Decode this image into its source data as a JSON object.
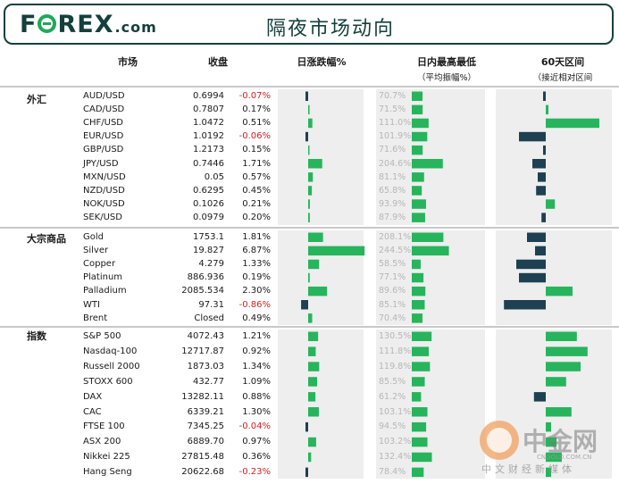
{
  "header": {
    "logo": {
      "pre": "F",
      "post": "REX",
      "domain": ".com"
    },
    "title": "隔夜市场动向"
  },
  "columns": {
    "market": "市场",
    "close": "收盘",
    "daily": "日涨跌幅%",
    "range": "日内最高最低",
    "range_sub": "（平均振幅%）",
    "sixty": "60天区间",
    "sixty_sub": "（接近相对区间"
  },
  "watermark": {
    "name": "中金网",
    "url": "CNGOLD.COM.CN",
    "slogan": "中文财经新媒体"
  },
  "colors": {
    "positive": "#27b45c",
    "negative": "#1d4052",
    "negative_text": "#d42020",
    "panel": "#eeeeee"
  },
  "chart_data": {
    "type": "bar",
    "daily_change_range": [
      -1,
      8
    ],
    "sixty_day_range": [
      -1,
      1
    ],
    "sections": [
      {
        "name": "外汇",
        "rows": [
          {
            "name": "AUD/USD",
            "close": "0.6994",
            "change": "-0.07%",
            "change_value": -0.07,
            "avg_range": "70.7%",
            "avg_value": 70.7,
            "sixty_day": -0.03
          },
          {
            "name": "CAD/USD",
            "close": "0.7807",
            "change": "0.17%",
            "change_value": 0.17,
            "avg_range": "71.5%",
            "avg_value": 71.5,
            "sixty_day": 0.03
          },
          {
            "name": "CHF/USD",
            "close": "1.0472",
            "change": "0.51%",
            "change_value": 0.51,
            "avg_range": "111.0%",
            "avg_value": 111.0,
            "sixty_day": 1.0
          },
          {
            "name": "EUR/USD",
            "close": "1.0192",
            "change": "-0.06%",
            "change_value": -0.06,
            "avg_range": "101.9%",
            "avg_value": 101.9,
            "sixty_day": -0.5
          },
          {
            "name": "GBP/USD",
            "close": "1.2173",
            "change": "0.15%",
            "change_value": 0.15,
            "avg_range": "71.6%",
            "avg_value": 71.6,
            "sixty_day": -0.04
          },
          {
            "name": "JPY/USD",
            "close": "0.7446",
            "change": "1.71%",
            "change_value": 1.71,
            "avg_range": "204.6%",
            "avg_value": 204.6,
            "sixty_day": -0.25
          },
          {
            "name": "MXN/USD",
            "close": "0.05",
            "change": "0.57%",
            "change_value": 0.57,
            "avg_range": "81.1%",
            "avg_value": 81.1,
            "sixty_day": -0.15
          },
          {
            "name": "NZD/USD",
            "close": "0.6295",
            "change": "0.45%",
            "change_value": 0.45,
            "avg_range": "65.8%",
            "avg_value": 65.8,
            "sixty_day": -0.18
          },
          {
            "name": "NOK/USD",
            "close": "0.1026",
            "change": "0.21%",
            "change_value": 0.21,
            "avg_range": "93.9%",
            "avg_value": 93.9,
            "sixty_day": 0.17
          },
          {
            "name": "SEK/USD",
            "close": "0.0979",
            "change": "0.20%",
            "change_value": 0.2,
            "avg_range": "87.9%",
            "avg_value": 87.9,
            "sixty_day": -0.08
          }
        ]
      },
      {
        "name": "大宗商品",
        "rows": [
          {
            "name": "Gold",
            "close": "1753.1",
            "change": "1.81%",
            "change_value": 1.81,
            "avg_range": "208.1%",
            "avg_value": 208.1,
            "sixty_day": -0.35
          },
          {
            "name": "Silver",
            "close": "19.827",
            "change": "6.87%",
            "change_value": 6.87,
            "avg_range": "244.5%",
            "avg_value": 244.5,
            "sixty_day": -0.2
          },
          {
            "name": "Copper",
            "close": "4.279",
            "change": "1.33%",
            "change_value": 1.33,
            "avg_range": "58.5%",
            "avg_value": 58.5,
            "sixty_day": -0.55
          },
          {
            "name": "Platinum",
            "close": "886.936",
            "change": "0.19%",
            "change_value": 0.19,
            "avg_range": "77.1%",
            "avg_value": 77.1,
            "sixty_day": -0.5
          },
          {
            "name": "Palladium",
            "close": "2085.534",
            "change": "2.30%",
            "change_value": 2.3,
            "avg_range": "89.6%",
            "avg_value": 89.6,
            "sixty_day": 0.5
          },
          {
            "name": "WTI",
            "close": "97.31",
            "change": "-0.86%",
            "change_value": -0.86,
            "avg_range": "85.1%",
            "avg_value": 85.1,
            "sixty_day": -0.78
          },
          {
            "name": "Brent",
            "close": "Closed",
            "change": "0.49%",
            "change_value": 0.49,
            "avg_range": "70.4%",
            "avg_value": 70.4,
            "sixty_day": null
          }
        ]
      },
      {
        "name": "指数",
        "rows": [
          {
            "name": "S&P 500",
            "close": "4072.43",
            "change": "1.21%",
            "change_value": 1.21,
            "avg_range": "130.5%",
            "avg_value": 130.5,
            "sixty_day": 0.58
          },
          {
            "name": "Nasdaq-100",
            "close": "12717.87",
            "change": "0.92%",
            "change_value": 0.92,
            "avg_range": "111.8%",
            "avg_value": 111.8,
            "sixty_day": 0.78
          },
          {
            "name": "Russell 2000",
            "close": "1873.03",
            "change": "1.34%",
            "change_value": 1.34,
            "avg_range": "119.8%",
            "avg_value": 119.8,
            "sixty_day": 0.65
          },
          {
            "name": "STOXX 600",
            "close": "432.77",
            "change": "1.09%",
            "change_value": 1.09,
            "avg_range": "85.5%",
            "avg_value": 85.5,
            "sixty_day": 0.38
          },
          {
            "name": "DAX",
            "close": "13282.11",
            "change": "0.88%",
            "change_value": 0.88,
            "avg_range": "61.2%",
            "avg_value": 61.2,
            "sixty_day": -0.22
          },
          {
            "name": "CAC",
            "close": "6339.21",
            "change": "1.30%",
            "change_value": 1.3,
            "avg_range": "103.1%",
            "avg_value": 103.1,
            "sixty_day": 0.48
          },
          {
            "name": "FTSE 100",
            "close": "7345.25",
            "change": "-0.04%",
            "change_value": -0.04,
            "avg_range": "94.5%",
            "avg_value": 94.5,
            "sixty_day": 0.1
          },
          {
            "name": "ASX 200",
            "close": "6889.70",
            "change": "0.97%",
            "change_value": 0.97,
            "avg_range": "103.2%",
            "avg_value": 103.2,
            "sixty_day": 0.2
          },
          {
            "name": "Nikkei 225",
            "close": "27815.48",
            "change": "0.36%",
            "change_value": 0.36,
            "avg_range": "132.4%",
            "avg_value": 132.4,
            "sixty_day": 0.3
          },
          {
            "name": "Hang Seng",
            "close": "20622.68",
            "change": "-0.23%",
            "change_value": -0.23,
            "avg_range": "78.4%",
            "avg_value": 78.4,
            "sixty_day": 0.1
          }
        ]
      }
    ]
  }
}
